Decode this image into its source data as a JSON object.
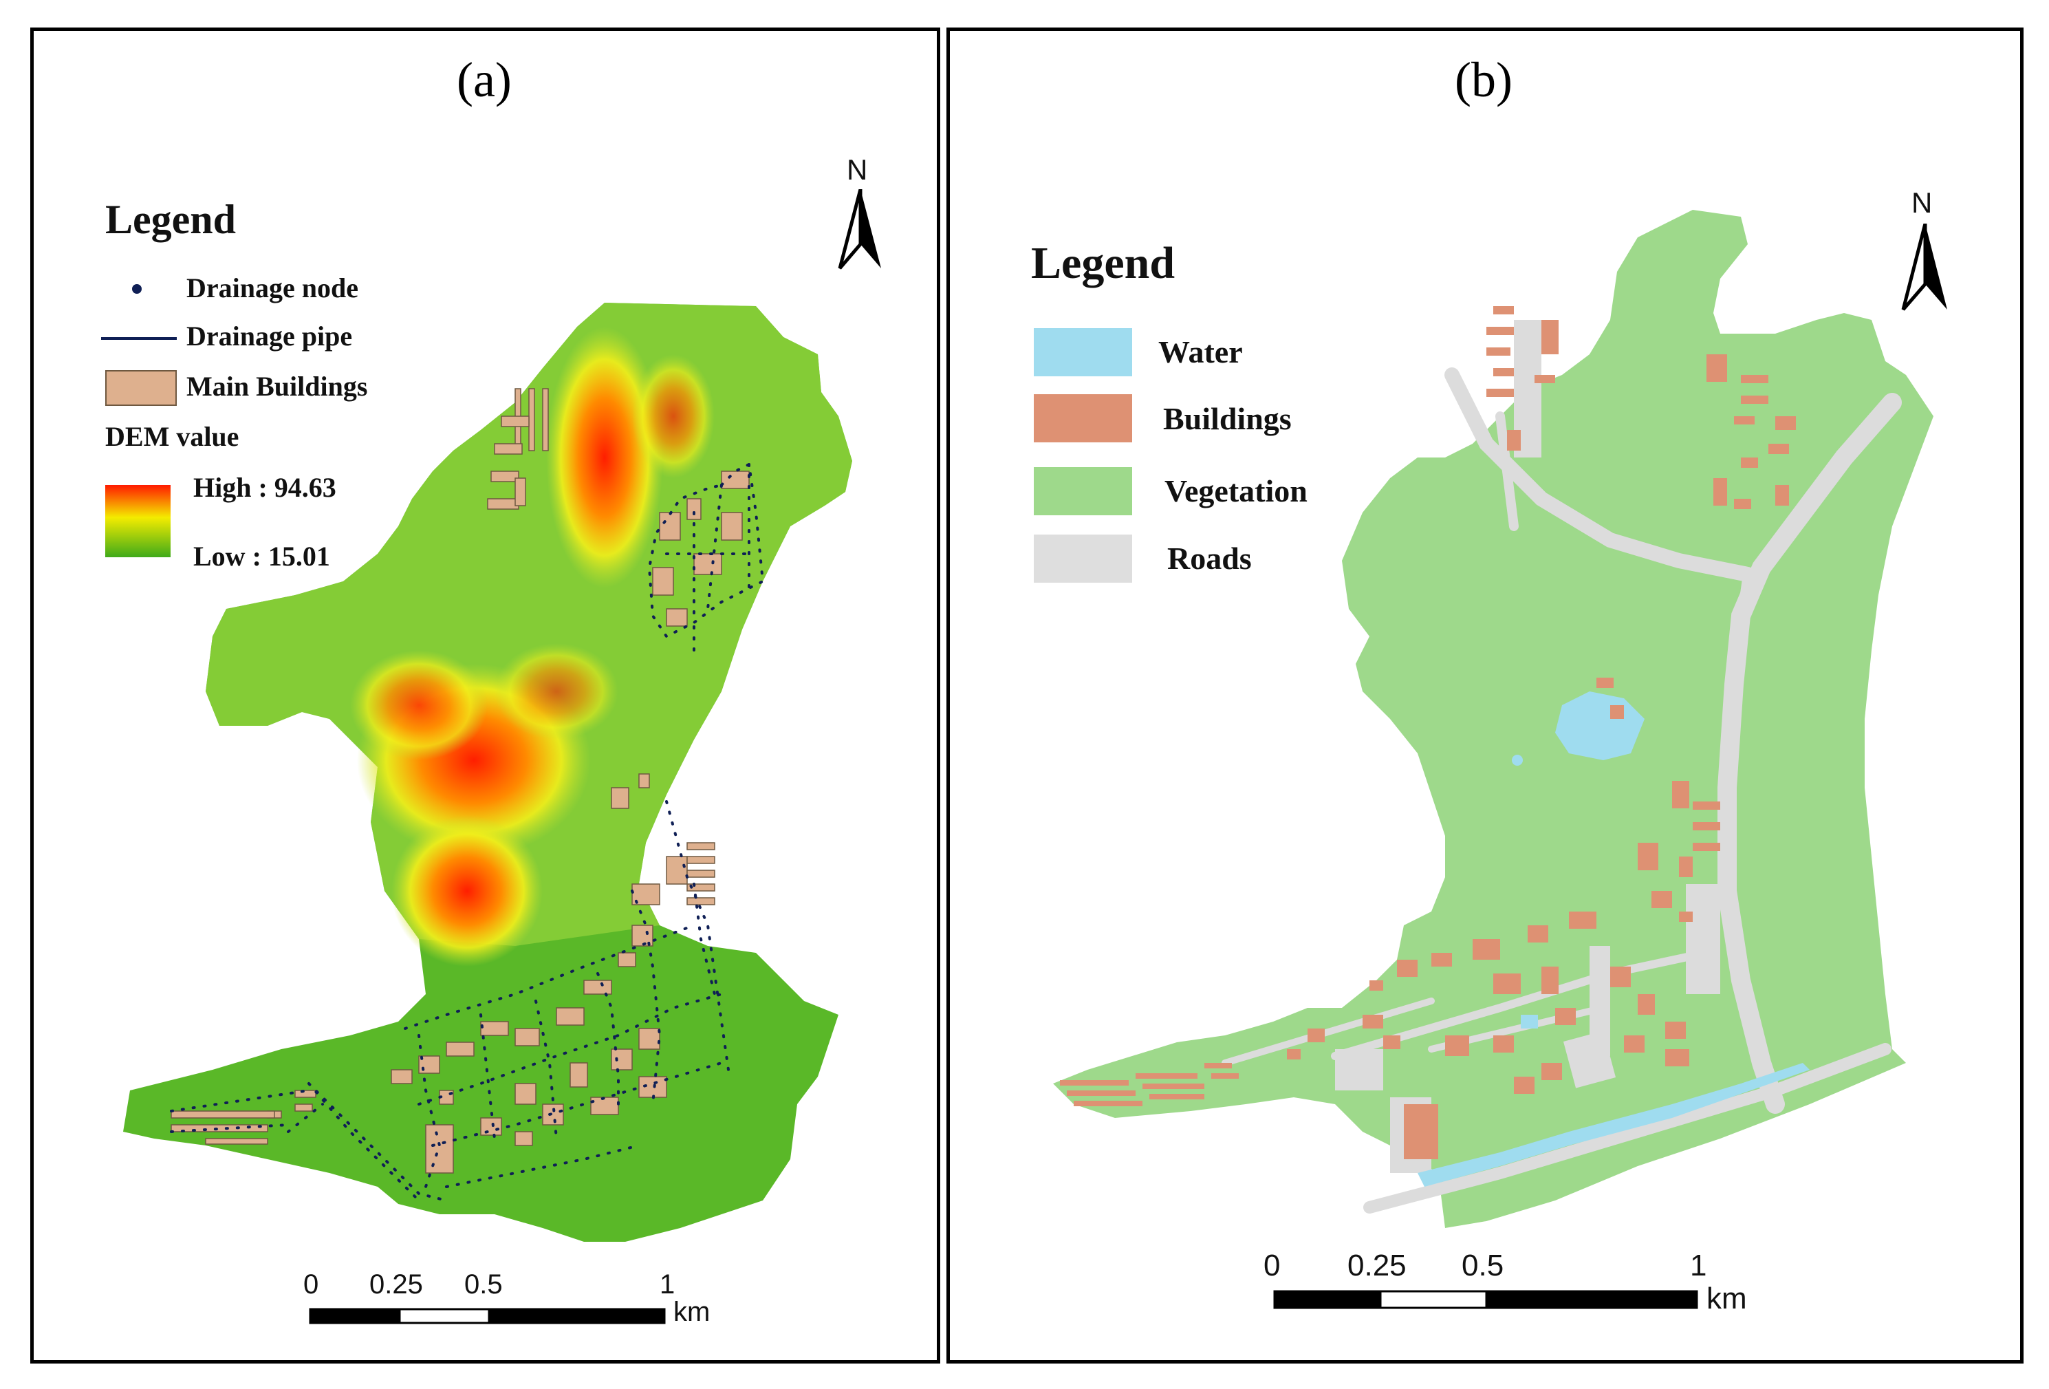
{
  "panel_a": {
    "title": "(a)",
    "legend": {
      "title": "Legend",
      "drainage_node": "Drainage node",
      "drainage_pipe": "Drainage pipe",
      "main_buildings": "Main Buildings",
      "dem_title": "DEM value",
      "high": "High : 94.63",
      "low": "Low : 15.01"
    },
    "north": "N",
    "scale": {
      "labels": [
        "0",
        "0.25",
        "0.5",
        "1"
      ],
      "unit": "km"
    }
  },
  "panel_b": {
    "title": "(b)",
    "legend": {
      "title": "Legend",
      "items": [
        {
          "label": "Water",
          "color": "#9fdcef"
        },
        {
          "label": "Buildings",
          "color": "#de9173"
        },
        {
          "label": "Vegetation",
          "color": "#9ed98b"
        },
        {
          "label": "Roads",
          "color": "#dedede"
        }
      ]
    },
    "north": "N",
    "scale": {
      "labels": [
        "0",
        "0.25",
        "0.5",
        "1"
      ],
      "unit": "km"
    }
  },
  "colors": {
    "dem_high": "#ff2200",
    "dem_mid": "#f6ef00",
    "dem_low": "#3faa1a",
    "building_a": "#deb08e",
    "drainage": "#0f1f55"
  }
}
